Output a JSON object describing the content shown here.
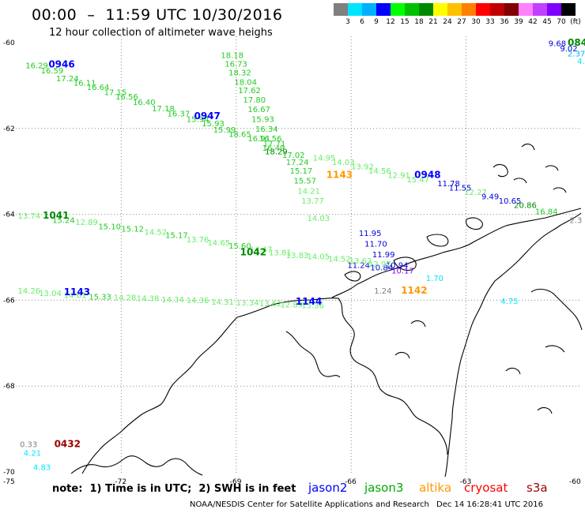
{
  "header": {
    "title": "00:00  –  11:59 UTC 10/30/2016",
    "subtitle": "12 hour collection of altimeter wave heighs"
  },
  "legend": {
    "colors": [
      "#808080",
      "#00e5ff",
      "#00b0ff",
      "#0000ff",
      "#00ff00",
      "#00c000",
      "#008800",
      "#ffff00",
      "#ffc000",
      "#ff8000",
      "#ff0000",
      "#c00000",
      "#800000",
      "#ff80ff",
      "#c040ff",
      "#8000ff",
      "#000000"
    ],
    "labels": [
      "3",
      "6",
      "9",
      "12",
      "15",
      "18",
      "21",
      "24",
      "27",
      "30",
      "33",
      "36",
      "39",
      "42",
      "45",
      "70",
      "(ft)"
    ]
  },
  "axes": {
    "lat_labels": [
      "-60",
      "-62",
      "-64",
      "-66",
      "-68",
      "-70"
    ],
    "lon_labels": [
      "-75",
      "-72",
      "-69",
      "-66",
      "-63",
      "-60"
    ]
  },
  "satellites": {
    "jason2": {
      "label": "jason2",
      "color": "#0000ff"
    },
    "jason3": {
      "label": "jason3",
      "color": "#00aa00"
    },
    "altika": {
      "label": "altika",
      "color": "#ff9900"
    },
    "cryosat": {
      "label": "cryosat",
      "color": "#ff0000"
    },
    "s3a": {
      "label": "s3a",
      "color": "#990000"
    }
  },
  "observations": [
    {
      "v": "16.29",
      "lon": -74.5,
      "lat": -60.6,
      "c": "#22cc22"
    },
    {
      "v": "16.59",
      "lon": -74.1,
      "lat": -60.72,
      "c": "#22cc22"
    },
    {
      "v": "17.24",
      "lon": -73.7,
      "lat": -60.9,
      "c": "#22cc22"
    },
    {
      "v": "16.11",
      "lon": -73.25,
      "lat": -61.0,
      "c": "#22cc22"
    },
    {
      "v": "16.64",
      "lon": -72.9,
      "lat": -61.1,
      "c": "#22cc22"
    },
    {
      "v": "17.15",
      "lon": -72.45,
      "lat": -61.22,
      "c": "#22cc22"
    },
    {
      "v": "16.56",
      "lon": -72.15,
      "lat": -61.32,
      "c": "#22cc22"
    },
    {
      "v": "16.40",
      "lon": -71.7,
      "lat": -61.45,
      "c": "#22cc22"
    },
    {
      "v": "17.18",
      "lon": -71.2,
      "lat": -61.6,
      "c": "#22cc22"
    },
    {
      "v": "16.37",
      "lon": -70.8,
      "lat": -61.72,
      "c": "#22cc22"
    },
    {
      "v": "15.94",
      "lon": -70.3,
      "lat": -61.85,
      "c": "#22cc22"
    },
    {
      "v": "15.93",
      "lon": -69.9,
      "lat": -61.95,
      "c": "#22cc22"
    },
    {
      "v": "15.99",
      "lon": -69.6,
      "lat": -62.1,
      "c": "#22cc22"
    },
    {
      "v": "18.65",
      "lon": -69.2,
      "lat": -62.2,
      "c": "#22cc22"
    },
    {
      "v": "16.91",
      "lon": -68.7,
      "lat": -62.3,
      "c": "#22cc22"
    },
    {
      "v": "17.71",
      "lon": -68.3,
      "lat": -62.42,
      "c": "#22cc22"
    },
    {
      "v": "18.18",
      "lon": -69.4,
      "lat": -60.36,
      "c": "#22cc22"
    },
    {
      "v": "16.73",
      "lon": -69.3,
      "lat": -60.56,
      "c": "#22cc22"
    },
    {
      "v": "18.32",
      "lon": -69.2,
      "lat": -60.76,
      "c": "#22cc22"
    },
    {
      "v": "18.04",
      "lon": -69.05,
      "lat": -60.98,
      "c": "#22cc22"
    },
    {
      "v": "17.62",
      "lon": -68.95,
      "lat": -61.18,
      "c": "#22cc22"
    },
    {
      "v": "17.80",
      "lon": -68.82,
      "lat": -61.4,
      "c": "#22cc22"
    },
    {
      "v": "16.67",
      "lon": -68.7,
      "lat": -61.62,
      "c": "#22cc22"
    },
    {
      "v": "15.93",
      "lon": -68.6,
      "lat": -61.85,
      "c": "#22cc22"
    },
    {
      "v": "16.34",
      "lon": -68.5,
      "lat": -62.08,
      "c": "#22cc22"
    },
    {
      "v": "16.56",
      "lon": -68.4,
      "lat": -62.3,
      "c": "#22cc22"
    },
    {
      "v": "16.49",
      "lon": -68.32,
      "lat": -62.52,
      "c": "#22cc22"
    },
    {
      "v": "18.29",
      "lon": -68.25,
      "lat": -62.6,
      "c": "#008800"
    },
    {
      "v": "17.02",
      "lon": -67.8,
      "lat": -62.68,
      "c": "#22cc22"
    },
    {
      "v": "17.24",
      "lon": -67.7,
      "lat": -62.85,
      "c": "#22cc22"
    },
    {
      "v": "15.17",
      "lon": -67.6,
      "lat": -63.05,
      "c": "#22cc22"
    },
    {
      "v": "15.57",
      "lon": -67.5,
      "lat": -63.28,
      "c": "#22cc22"
    },
    {
      "v": "14.21",
      "lon": -67.4,
      "lat": -63.52,
      "c": "#66ee66"
    },
    {
      "v": "13.77",
      "lon": -67.3,
      "lat": -63.75,
      "c": "#66ee66"
    },
    {
      "v": "14.03",
      "lon": -67.15,
      "lat": -64.15,
      "c": "#66ee66"
    },
    {
      "v": "14.95",
      "lon": -67.0,
      "lat": -62.75,
      "c": "#66ee66"
    },
    {
      "v": "14.03",
      "lon": -66.5,
      "lat": -62.85,
      "c": "#66ee66"
    },
    {
      "v": "13.92",
      "lon": -66.0,
      "lat": -62.95,
      "c": "#66ee66"
    },
    {
      "v": "14.56",
      "lon": -65.55,
      "lat": -63.05,
      "c": "#66ee66"
    },
    {
      "v": "12.91",
      "lon": -65.05,
      "lat": -63.15,
      "c": "#66ee66"
    },
    {
      "v": "15.47",
      "lon": -64.55,
      "lat": -63.25,
      "c": "#66ee66"
    },
    {
      "v": "11.78",
      "lon": -63.75,
      "lat": -63.35,
      "c": "#0000dd"
    },
    {
      "v": "11.55",
      "lon": -63.45,
      "lat": -63.45,
      "c": "#0000dd"
    },
    {
      "v": "12.27",
      "lon": -63.05,
      "lat": -63.55,
      "c": "#66ee66"
    },
    {
      "v": "9.49",
      "lon": -62.6,
      "lat": -63.65,
      "c": "#0000dd"
    },
    {
      "v": "10.65",
      "lon": -62.15,
      "lat": -63.75,
      "c": "#0000dd"
    },
    {
      "v": "20.86",
      "lon": -61.75,
      "lat": -63.85,
      "c": "#008800"
    },
    {
      "v": "16.84",
      "lon": -61.2,
      "lat": -64.0,
      "c": "#22cc22"
    },
    {
      "v": "2.3",
      "lon": -60.3,
      "lat": -64.2,
      "c": "#808080"
    },
    {
      "v": "11.95",
      "lon": -65.8,
      "lat": -64.5,
      "c": "#0000dd"
    },
    {
      "v": "11.70",
      "lon": -65.65,
      "lat": -64.75,
      "c": "#0000dd"
    },
    {
      "v": "11.99",
      "lon": -65.45,
      "lat": -65.0,
      "c": "#0000dd"
    },
    {
      "v": "11.24",
      "lon": -66.1,
      "lat": -65.25,
      "c": "#0000dd"
    },
    {
      "v": "10.84",
      "lon": -65.5,
      "lat": -65.3,
      "c": "#0000dd"
    },
    {
      "v": "10.94",
      "lon": -65.1,
      "lat": -65.25,
      "c": "#0000dd"
    },
    {
      "v": "10.17",
      "lon": -64.95,
      "lat": -65.38,
      "c": "#8000ff"
    },
    {
      "v": "13.74",
      "lon": -74.7,
      "lat": -64.1,
      "c": "#66ee66"
    },
    {
      "v": "15.24",
      "lon": -73.8,
      "lat": -64.2,
      "c": "#22cc22"
    },
    {
      "v": "12.89",
      "lon": -73.2,
      "lat": -64.25,
      "c": "#66ee66"
    },
    {
      "v": "15.10",
      "lon": -72.6,
      "lat": -64.35,
      "c": "#22cc22"
    },
    {
      "v": "15.12",
      "lon": -72.0,
      "lat": -64.4,
      "c": "#22cc22"
    },
    {
      "v": "14.52",
      "lon": -71.4,
      "lat": -64.48,
      "c": "#66ee66"
    },
    {
      "v": "15.17",
      "lon": -70.85,
      "lat": -64.55,
      "c": "#22cc22"
    },
    {
      "v": "13.76",
      "lon": -70.3,
      "lat": -64.65,
      "c": "#66ee66"
    },
    {
      "v": "14.65",
      "lon": -69.75,
      "lat": -64.72,
      "c": "#66ee66"
    },
    {
      "v": "15.60",
      "lon": -69.2,
      "lat": -64.8,
      "c": "#22cc22"
    },
    {
      "v": "14.47",
      "lon": -68.65,
      "lat": -64.88,
      "c": "#66ee66"
    },
    {
      "v": "13.81",
      "lon": -68.15,
      "lat": -64.95,
      "c": "#66ee66"
    },
    {
      "v": "13.83",
      "lon": -67.7,
      "lat": -65.02,
      "c": "#66ee66"
    },
    {
      "v": "14.05",
      "lon": -67.15,
      "lat": -65.05,
      "c": "#66ee66"
    },
    {
      "v": "14.52",
      "lon": -66.6,
      "lat": -65.1,
      "c": "#66ee66"
    },
    {
      "v": "13.62",
      "lon": -66.05,
      "lat": -65.15,
      "c": "#66ee66"
    },
    {
      "v": "12.97",
      "lon": -65.55,
      "lat": -65.22,
      "c": "#66ee66"
    },
    {
      "v": "14.26",
      "lon": -74.7,
      "lat": -65.85,
      "c": "#66ee66"
    },
    {
      "v": "13.04",
      "lon": -74.15,
      "lat": -65.9,
      "c": "#66ee66"
    },
    {
      "v": "14.61",
      "lon": -73.5,
      "lat": -65.95,
      "c": "#66ee66"
    },
    {
      "v": "15.33",
      "lon": -72.85,
      "lat": -65.98,
      "c": "#22cc22"
    },
    {
      "v": "14.28",
      "lon": -72.2,
      "lat": -66.0,
      "c": "#66ee66"
    },
    {
      "v": "14.38",
      "lon": -71.6,
      "lat": -66.02,
      "c": "#66ee66"
    },
    {
      "v": "14.34",
      "lon": -70.95,
      "lat": -66.05,
      "c": "#66ee66"
    },
    {
      "v": "14.36",
      "lon": -70.3,
      "lat": -66.07,
      "c": "#66ee66"
    },
    {
      "v": "14.31",
      "lon": -69.65,
      "lat": -66.1,
      "c": "#66ee66"
    },
    {
      "v": "13.34",
      "lon": -69.0,
      "lat": -66.12,
      "c": "#66ee66"
    },
    {
      "v": "13.62",
      "lon": -68.4,
      "lat": -66.14,
      "c": "#66ee66"
    },
    {
      "v": "12.89",
      "lon": -67.85,
      "lat": -66.17,
      "c": "#66ee66"
    },
    {
      "v": "13.36",
      "lon": -67.3,
      "lat": -66.19,
      "c": "#66ee66"
    },
    {
      "v": "1.24",
      "lon": -65.4,
      "lat": -65.85,
      "c": "#808080"
    },
    {
      "v": "1.70",
      "lon": -64.05,
      "lat": -65.55,
      "c": "#00e5ff"
    },
    {
      "v": "4.75",
      "lon": -62.1,
      "lat": -66.08,
      "c": "#00e5ff"
    },
    {
      "v": "9.68",
      "lon": -60.85,
      "lat": -60.08,
      "c": "#0000dd"
    },
    {
      "v": "9.02",
      "lon": -60.55,
      "lat": -60.2,
      "c": "#0000dd"
    },
    {
      "v": "2.37",
      "lon": -60.35,
      "lat": -60.32,
      "c": "#00b0ff"
    },
    {
      "v": "4.",
      "lon": -60.1,
      "lat": -60.5,
      "c": "#00e5ff"
    },
    {
      "v": "0.33",
      "lon": -74.65,
      "lat": -69.42,
      "c": "#808080"
    },
    {
      "v": "4.21",
      "lon": -74.55,
      "lat": -69.62,
      "c": "#00e5ff"
    },
    {
      "v": "4.83",
      "lon": -74.3,
      "lat": -69.95,
      "c": "#00e5ff"
    }
  ],
  "passes": [
    {
      "t": "0946",
      "lon": -73.9,
      "lat": -60.58,
      "c": "#0000ff"
    },
    {
      "t": "0947",
      "lon": -70.1,
      "lat": -61.78,
      "c": "#0000ff"
    },
    {
      "t": "0948",
      "lon": -64.35,
      "lat": -63.15,
      "c": "#0000ff"
    },
    {
      "t": "084",
      "lon": -60.35,
      "lat": -60.07,
      "c": "#008800"
    },
    {
      "t": "1143",
      "lon": -66.65,
      "lat": -63.15,
      "c": "#ff9900"
    },
    {
      "t": "1142",
      "lon": -64.7,
      "lat": -65.85,
      "c": "#ff9900"
    },
    {
      "t": "1041",
      "lon": -74.05,
      "lat": -64.1,
      "c": "#008800"
    },
    {
      "t": "1042",
      "lon": -68.9,
      "lat": -64.95,
      "c": "#008800"
    },
    {
      "t": "1143",
      "lon": -73.5,
      "lat": -65.88,
      "c": "#0000ff"
    },
    {
      "t": "1144",
      "lon": -67.45,
      "lat": -66.1,
      "c": "#0000ff"
    },
    {
      "t": "0432",
      "lon": -73.75,
      "lat": -69.42,
      "c": "#990000"
    }
  ],
  "footer": {
    "note": "note:  1) Time is in UTC;  2) SWH is in feet",
    "source": "NOAA/NESDIS Center for Satellite Applications and Research",
    "date": "Dec 14 16:28:41 UTC 2016"
  }
}
